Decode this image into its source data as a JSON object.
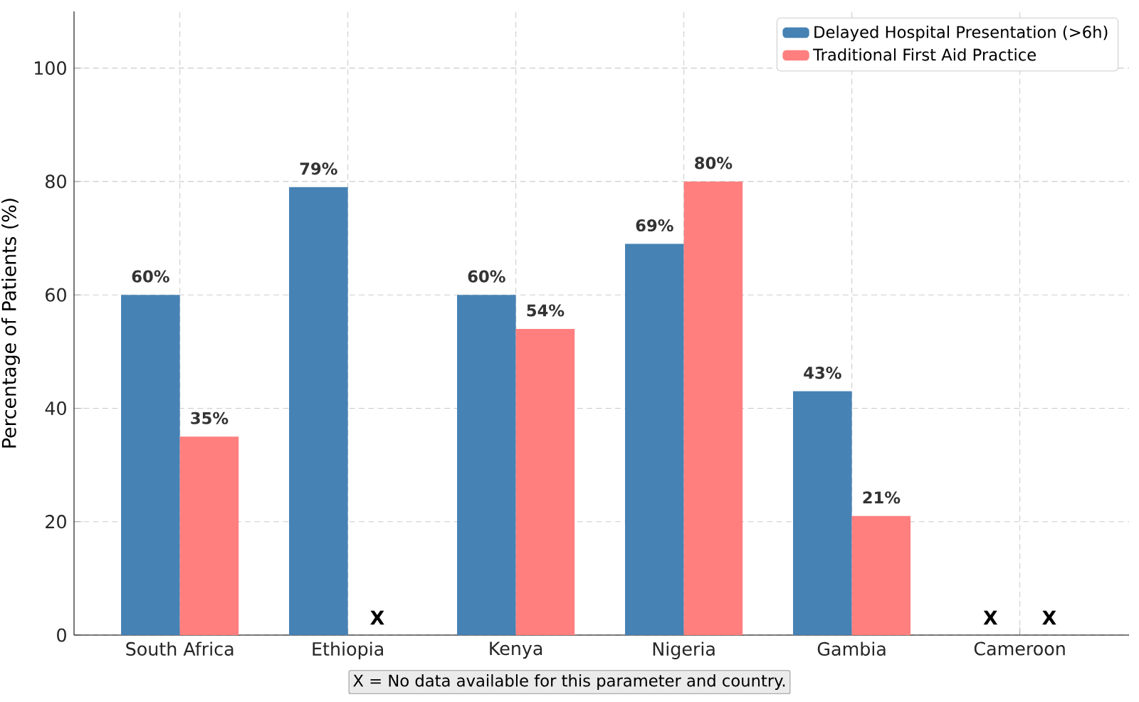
{
  "chart_data": {
    "type": "bar",
    "ylabel": "Percentage of Patients (%)",
    "categories": [
      "South Africa",
      "Ethiopia",
      "Kenya",
      "Nigeria",
      "Gambia",
      "Cameroon"
    ],
    "series": [
      {
        "name": "Delayed Hospital Presentation (>6h)",
        "color": "#4682b4",
        "values": [
          60,
          79,
          60,
          69,
          43,
          null
        ],
        "value_labels": [
          "60%",
          "79%",
          "60%",
          "69%",
          "43%",
          null
        ]
      },
      {
        "name": "Traditional First Aid Practice",
        "color": "#ff7f7f",
        "values": [
          35,
          null,
          54,
          80,
          21,
          null
        ],
        "value_labels": [
          "35%",
          null,
          "54%",
          "80%",
          "21%",
          null
        ]
      }
    ],
    "ylim": [
      0,
      110
    ],
    "yticks": [
      0,
      20,
      40,
      60,
      80,
      100
    ],
    "grid": true,
    "legend": "top right",
    "annotations": [
      {
        "text": "X",
        "x": "Ethiopia",
        "y": 0
      },
      "X",
      "X",
      "X = No data available for this parameter and country."
    ]
  }
}
